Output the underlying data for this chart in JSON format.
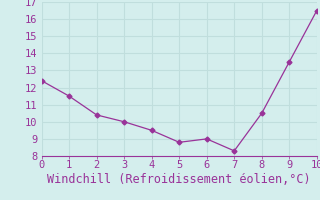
{
  "x": [
    0,
    1,
    2,
    3,
    4,
    5,
    6,
    7,
    8,
    9,
    10
  ],
  "y": [
    12.4,
    11.5,
    10.4,
    10.0,
    9.5,
    8.8,
    9.0,
    8.3,
    10.5,
    13.5,
    16.5
  ],
  "xlabel": "Windchill (Refroidissement éolien,°C)",
  "xlim": [
    0,
    10
  ],
  "ylim": [
    8,
    17
  ],
  "yticks": [
    8,
    9,
    10,
    11,
    12,
    13,
    14,
    15,
    16,
    17
  ],
  "xticks": [
    0,
    1,
    2,
    3,
    4,
    5,
    6,
    7,
    8,
    9,
    10
  ],
  "line_color": "#993399",
  "marker": "D",
  "markersize": 2.5,
  "bg_color": "#d4eeed",
  "grid_color": "#c0dedd",
  "xlabel_color": "#993399",
  "tick_color": "#993399",
  "tick_fontsize": 7.5,
  "xlabel_fontsize": 8.5
}
